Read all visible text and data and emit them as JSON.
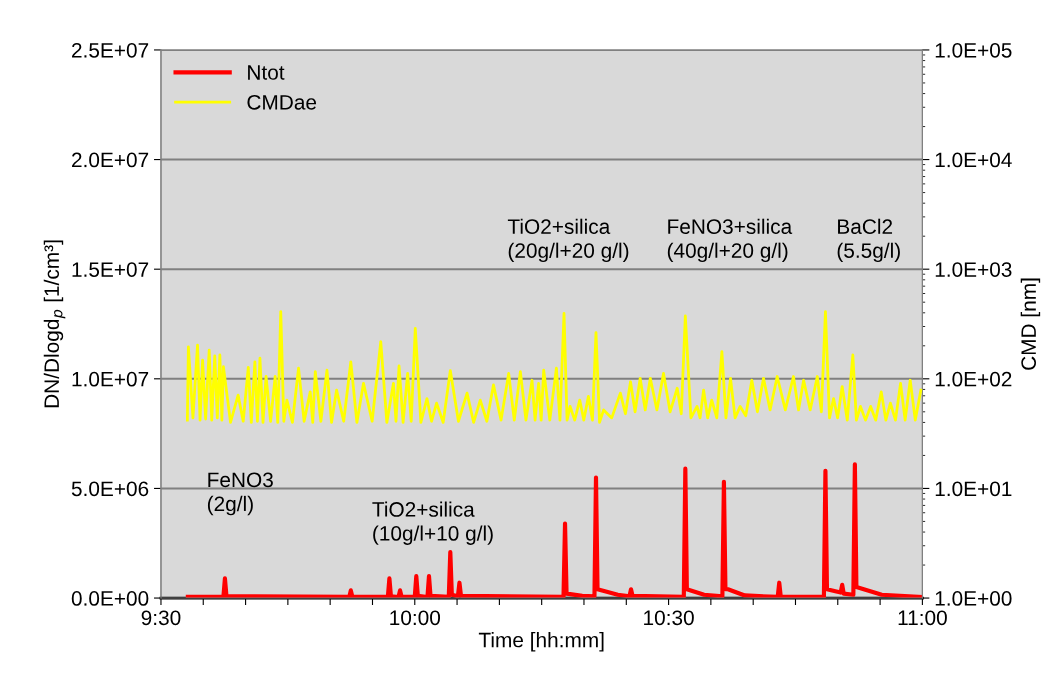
{
  "chart_data": {
    "type": "line",
    "xlabel": "Time [hh:mm]",
    "ylabel": "DN/Dlogd$_{p}$ [1/cm³]",
    "y2label": "CMD [nm]",
    "xlim": [
      9.5,
      11.0
    ],
    "xticks": [
      {
        "value": 9.5,
        "label": "9:30"
      },
      {
        "value": 9.5833,
        "label": null
      },
      {
        "value": 9.6667,
        "label": null
      },
      {
        "value": 9.75,
        "label": null
      },
      {
        "value": 9.8333,
        "label": null
      },
      {
        "value": 9.9167,
        "label": null
      },
      {
        "value": 10.0,
        "label": "10:00"
      },
      {
        "value": 10.0833,
        "label": null
      },
      {
        "value": 10.1667,
        "label": null
      },
      {
        "value": 10.25,
        "label": null
      },
      {
        "value": 10.3333,
        "label": null
      },
      {
        "value": 10.4167,
        "label": null
      },
      {
        "value": 10.5,
        "label": "10:30"
      },
      {
        "value": 10.5833,
        "label": null
      },
      {
        "value": 10.6667,
        "label": null
      },
      {
        "value": 10.75,
        "label": null
      },
      {
        "value": 10.8333,
        "label": null
      },
      {
        "value": 10.9167,
        "label": null
      },
      {
        "value": 11.0,
        "label": "11:00"
      }
    ],
    "ylim": [
      0,
      25000000
    ],
    "yticks": [
      {
        "value": 0,
        "label": "0.0E+00"
      },
      {
        "value": 5000000,
        "label": "5.0E+06"
      },
      {
        "value": 10000000,
        "label": "1.0E+07"
      },
      {
        "value": 15000000,
        "label": "1.5E+07"
      },
      {
        "value": 20000000,
        "label": "2.0E+07"
      },
      {
        "value": 25000000,
        "label": "2.5E+07"
      }
    ],
    "log": "y2",
    "y2lim": [
      1,
      100000
    ],
    "y2ticks": [
      {
        "value": 1,
        "label": "1.0E+00"
      },
      {
        "value": 10,
        "label": "1.0E+01"
      },
      {
        "value": 100,
        "label": "1.0E+02"
      },
      {
        "value": 1000,
        "label": "1.0E+03"
      },
      {
        "value": 10000,
        "label": "1.0E+04"
      },
      {
        "value": 100000,
        "label": "1.0E+05"
      }
    ],
    "grid": "y",
    "legend": "top left",
    "marker": "none",
    "line_style": "solid",
    "annotations": [
      "FeNO3\n(2g/l)",
      "TiO2+silica\n(10g/l+10 g/l)",
      "TiO2+silica\n(20g/l+20 g/l)",
      "FeNO3+silica\n(40g/l+20 g/l)",
      "BaCl2\n(5.5g/l)"
    ],
    "series": [
      {
        "name": "Ntot",
        "color": "#ff0000",
        "x": [
          9.553,
          9.623,
          9.626,
          9.629,
          9.871,
          9.874,
          9.877,
          9.947,
          9.95,
          9.953,
          9.968,
          9.971,
          9.974,
          10.0,
          10.003,
          10.006,
          10.025,
          10.028,
          10.031,
          10.067,
          10.07,
          10.073,
          10.085,
          10.088,
          10.091,
          10.293,
          10.296,
          10.299,
          10.33,
          10.354,
          10.357,
          10.36,
          10.4,
          10.423,
          10.426,
          10.429,
          10.53,
          10.533,
          10.536,
          10.57,
          10.606,
          10.609,
          10.612,
          10.617,
          10.65,
          10.715,
          10.718,
          10.721,
          10.806,
          10.809,
          10.812,
          10.839,
          10.842,
          10.845,
          10.864,
          10.867,
          10.87,
          10.92,
          11.0
        ],
        "values": [
          50000,
          50000,
          900000,
          80000,
          50000,
          350000,
          60000,
          50000,
          900000,
          80000,
          50000,
          350000,
          60000,
          50000,
          1000000,
          100000,
          50000,
          1000000,
          100000,
          50000,
          2100000,
          150000,
          80000,
          700000,
          100000,
          50000,
          3400000,
          200000,
          100000,
          80000,
          5500000,
          400000,
          150000,
          80000,
          400000,
          100000,
          50000,
          5900000,
          400000,
          150000,
          80000,
          5300000,
          400000,
          400000,
          120000,
          50000,
          700000,
          60000,
          50000,
          5800000,
          400000,
          250000,
          600000,
          200000,
          150000,
          6100000,
          500000,
          150000,
          50000
        ]
      },
      {
        "name": "CMDae",
        "color": "#ffff00",
        "axis": "y2",
        "x": [
          9.552,
          9.554,
          9.563,
          9.572,
          9.577,
          9.582,
          9.588,
          9.595,
          9.6,
          9.606,
          9.611,
          9.616,
          9.62,
          9.623,
          9.637,
          9.652,
          9.662,
          9.672,
          9.678,
          9.685,
          9.69,
          9.695,
          9.701,
          9.707,
          9.716,
          9.725,
          9.73,
          9.736,
          9.742,
          9.748,
          9.759,
          9.771,
          9.782,
          9.794,
          9.799,
          9.804,
          9.815,
          9.827,
          9.836,
          9.846,
          9.86,
          9.874,
          9.886,
          9.899,
          9.916,
          9.933,
          9.945,
          9.958,
          9.963,
          9.969,
          9.977,
          9.986,
          9.993,
          10.001,
          10.012,
          10.024,
          10.033,
          10.043,
          10.056,
          10.07,
          10.086,
          10.103,
          10.116,
          10.129,
          10.142,
          10.155,
          10.17,
          10.185,
          10.196,
          10.208,
          10.219,
          10.231,
          10.237,
          10.244,
          10.249,
          10.254,
          10.266,
          10.279,
          10.286,
          10.294,
          10.3,
          10.306,
          10.315,
          10.325,
          10.333,
          10.342,
          10.35,
          10.357,
          10.364,
          10.372,
          10.388,
          10.405,
          10.415,
          10.425,
          10.434,
          10.444,
          10.454,
          10.464,
          10.477,
          10.49,
          10.503,
          10.517,
          10.525,
          10.533,
          10.544,
          10.556,
          10.562,
          10.569,
          10.577,
          10.585,
          10.595,
          10.605,
          10.613,
          10.622,
          10.631,
          10.641,
          10.652,
          10.664,
          10.675,
          10.687,
          10.7,
          10.714,
          10.73,
          10.746,
          10.756,
          10.766,
          10.779,
          10.793,
          10.801,
          10.809,
          10.817,
          10.825,
          10.833,
          10.842,
          10.852,
          10.863,
          10.87,
          10.878,
          10.888,
          10.898,
          10.908,
          10.919,
          10.928,
          10.937,
          10.947,
          10.957,
          10.966,
          10.976,
          10.986,
          10.997
        ],
        "values": [
          42,
          196,
          44,
          203,
          42,
          148,
          43,
          183,
          42,
          162,
          44,
          165,
          42,
          129,
          40,
          71,
          41,
          127,
          40,
          143,
          41,
          154,
          40,
          105,
          41,
          105,
          40,
          410,
          41,
          64,
          40,
          125,
          41,
          76,
          40,
          116,
          41,
          120,
          40,
          79,
          41,
          143,
          40,
          91,
          41,
          218,
          40,
          91,
          41,
          131,
          40,
          112,
          41,
          289,
          40,
          66,
          41,
          60,
          40,
          119,
          41,
          74,
          40,
          64,
          41,
          88,
          42,
          112,
          42,
          116,
          42,
          97,
          42,
          91,
          42,
          120,
          42,
          125,
          42,
          396,
          42,
          56,
          42,
          64,
          42,
          69,
          42,
          264,
          40,
          52,
          44,
          74,
          48,
          94,
          50,
          101,
          52,
          101,
          52,
          112,
          50,
          82,
          48,
          374,
          44,
          56,
          44,
          79,
          44,
          64,
          44,
          177,
          44,
          101,
          44,
          56,
          46,
          97,
          50,
          101,
          52,
          105,
          52,
          105,
          52,
          97,
          52,
          105,
          50,
          410,
          44,
          66,
          44,
          85,
          42,
          165,
          42,
          56,
          42,
          56,
          42,
          76,
          42,
          60,
          42,
          91,
          42,
          97,
          42,
          79
        ]
      }
    ]
  }
}
